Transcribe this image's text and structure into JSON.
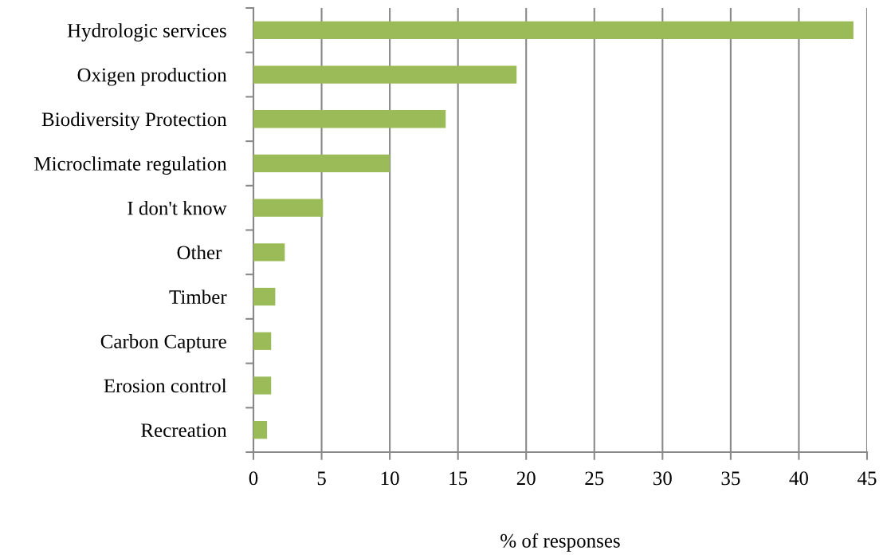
{
  "chart_data": {
    "type": "bar",
    "orientation": "horizontal",
    "xlabel": "% of responses",
    "categories": [
      "Hydrologic services",
      "Oxigen production",
      "Biodiversity Protection",
      "Microclimate regulation",
      "I don't know",
      "Other ",
      "Timber",
      "Carbon Capture",
      "Erosion control",
      "Recreation"
    ],
    "values": [
      44.0,
      19.3,
      14.1,
      10.0,
      5.1,
      2.3,
      1.6,
      1.3,
      1.3,
      1.0
    ],
    "color": "#9bbb59",
    "xlim": [
      0,
      45
    ],
    "xticks": [
      0,
      5,
      10,
      15,
      20,
      25,
      30,
      35,
      40,
      45
    ],
    "grid": "x",
    "legend": false
  }
}
